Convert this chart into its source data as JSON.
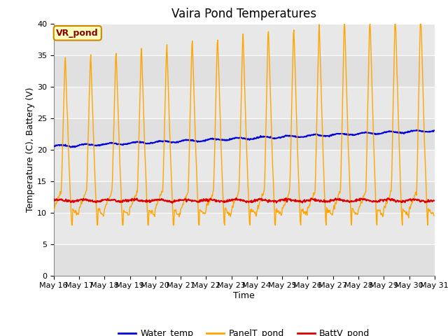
{
  "title": "Vaira Pond Temperatures",
  "xlabel": "Time",
  "ylabel": "Temperature (C), Battery (V)",
  "ylim": [
    0,
    40
  ],
  "yticks": [
    0,
    5,
    10,
    15,
    20,
    25,
    30,
    35,
    40
  ],
  "xlim_start": 16,
  "xlim_end": 31,
  "xtick_labels": [
    "May 16",
    "May 17",
    "May 18",
    "May 19",
    "May 20",
    "May 21",
    "May 22",
    "May 23",
    "May 24",
    "May 25",
    "May 26",
    "May 27",
    "May 28",
    "May 29",
    "May 30",
    "May 31"
  ],
  "annotation_text": "VR_pond",
  "fig_bg_color": "#ffffff",
  "plot_bg_color": "#e8e8e8",
  "grid_color": "#ffffff",
  "water_temp_color": "#0000dd",
  "panel_color": "#ffa500",
  "batt_color": "#dd0000",
  "legend_labels": [
    "Water_temp",
    "PanelT_pond",
    "BattV_pond"
  ],
  "title_fontsize": 12,
  "axis_fontsize": 9,
  "tick_fontsize": 8
}
